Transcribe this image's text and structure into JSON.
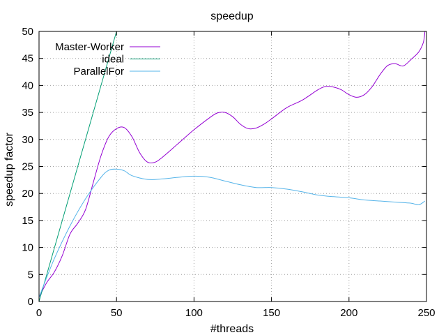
{
  "chart_data": {
    "type": "line",
    "title": "speedup",
    "xlabel": "#threads",
    "ylabel": "speedup factor",
    "xlim": [
      0,
      250
    ],
    "ylim": [
      0,
      50
    ],
    "xticks": [
      0,
      50,
      100,
      150,
      200,
      250
    ],
    "yticks": [
      0,
      5,
      10,
      15,
      20,
      25,
      30,
      35,
      40,
      45,
      50
    ],
    "grid": true,
    "legend_position": "top-left",
    "series": [
      {
        "name": "Master-Worker",
        "color": "#9400d3",
        "x": [
          0,
          5,
          10,
          15,
          20,
          25,
          30,
          35,
          40,
          45,
          50,
          55,
          60,
          65,
          70,
          75,
          80,
          90,
          100,
          110,
          115,
          120,
          125,
          130,
          135,
          140,
          145,
          150,
          160,
          170,
          180,
          185,
          190,
          195,
          200,
          205,
          210,
          215,
          220,
          225,
          230,
          235,
          240,
          245,
          248,
          249
        ],
        "y": [
          0.8,
          3.5,
          5.5,
          8.5,
          12.5,
          14.5,
          17,
          22,
          27,
          30.5,
          32,
          32.2,
          30.5,
          27.5,
          25.8,
          25.8,
          26.8,
          29.3,
          31.8,
          34,
          34.9,
          35.0,
          34.2,
          32.8,
          32.0,
          32.1,
          32.8,
          33.8,
          35.9,
          37.3,
          39.2,
          39.8,
          39.7,
          39.2,
          38.3,
          37.8,
          38.3,
          39.8,
          42,
          43.7,
          44,
          43.6,
          44.8,
          46.2,
          48,
          50
        ]
      },
      {
        "name": "ideal",
        "color": "#009e73",
        "x": [
          0,
          50
        ],
        "y": [
          0,
          50
        ]
      },
      {
        "name": "ParallelFor",
        "color": "#56b4e9",
        "x": [
          0,
          10,
          20,
          30,
          40,
          45,
          50,
          55,
          60,
          70,
          80,
          90,
          100,
          110,
          120,
          130,
          140,
          150,
          160,
          170,
          180,
          190,
          200,
          210,
          220,
          230,
          240,
          245,
          249
        ],
        "y": [
          0.8,
          8,
          14,
          19,
          23,
          24.3,
          24.5,
          24.2,
          23.3,
          22.6,
          22.7,
          23.0,
          23.2,
          23.0,
          22.3,
          21.6,
          21.1,
          21.1,
          20.8,
          20.3,
          19.7,
          19.4,
          19.2,
          18.8,
          18.6,
          18.4,
          18.2,
          17.9,
          18.6
        ]
      }
    ]
  }
}
